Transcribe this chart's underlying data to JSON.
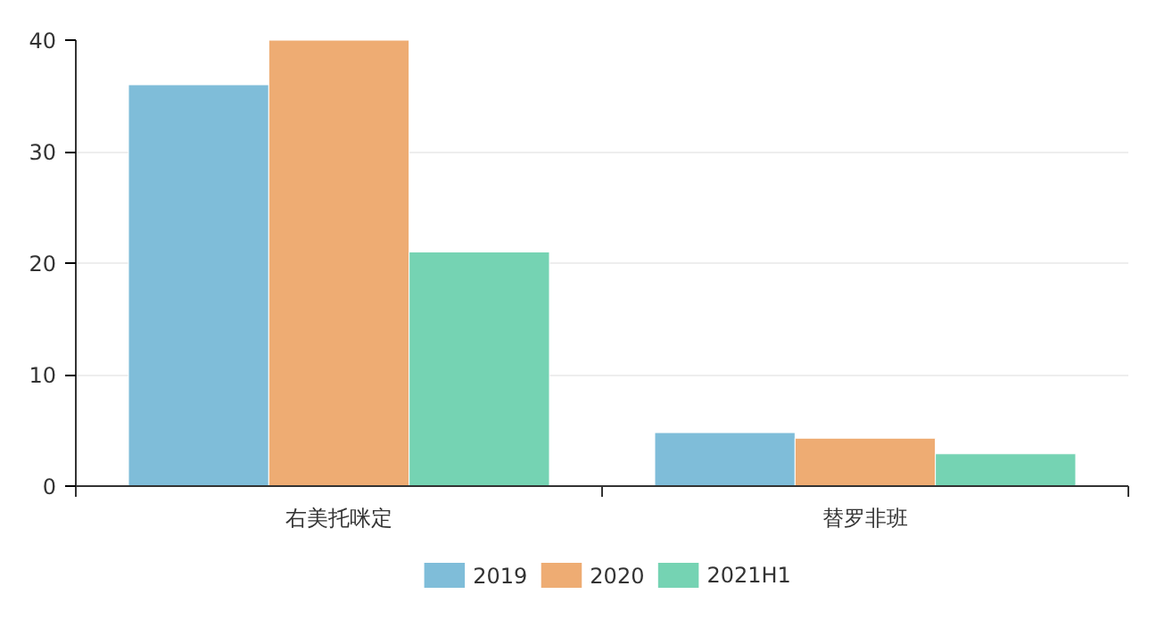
{
  "chart_data": {
    "type": "bar",
    "categories": [
      "右美托咪定",
      "替罗非班"
    ],
    "series": [
      {
        "name": "2019",
        "color": "#7fbdd9",
        "values": [
          36.0,
          4.8
        ]
      },
      {
        "name": "2020",
        "color": "#eeac73",
        "values": [
          40.0,
          4.3
        ]
      },
      {
        "name": "2021H1",
        "color": "#75d3b3",
        "values": [
          21.0,
          2.9
        ]
      }
    ],
    "ylim": [
      0,
      40
    ],
    "yticks": [
      0,
      10,
      20,
      30,
      40
    ],
    "grid": "y",
    "legend": "bottom"
  }
}
